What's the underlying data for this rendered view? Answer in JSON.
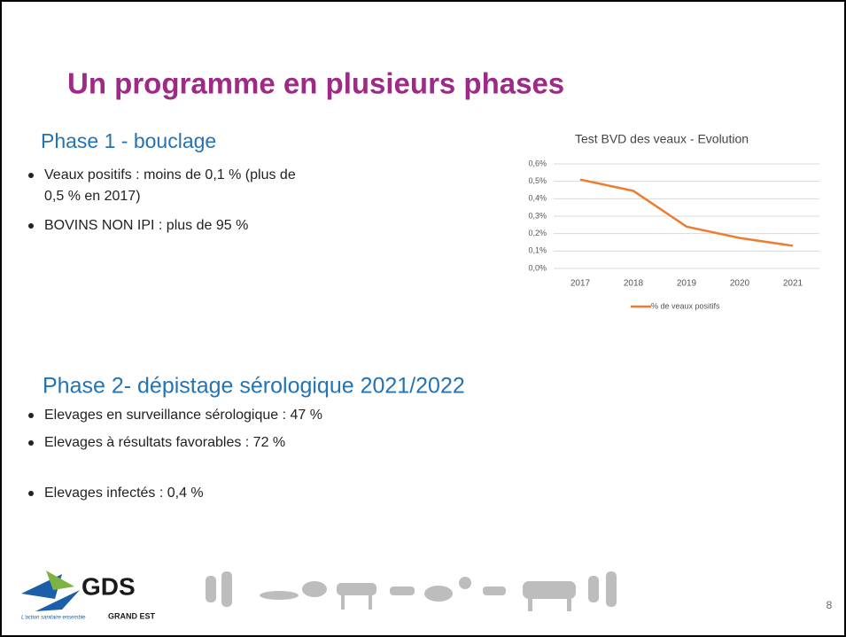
{
  "title": "Un programme en plusieurs phases",
  "phase1": {
    "heading": "Phase 1 - bouclage",
    "bullets": [
      [
        "Veaux positifs : moins de 0,1 % (plus de",
        "0,5 % en 2017)"
      ],
      [
        "BOVINS NON IPI  : plus de 95 %"
      ]
    ]
  },
  "phase2": {
    "heading": "Phase 2- dépistage sérologique 2021/2022",
    "bullets": [
      [
        "Elevages en surveillance sérologique : 47 %"
      ],
      [
        "Elevages à résultats favorables : 72 %"
      ],
      [
        "Elevages infectés : 0,4 %"
      ]
    ]
  },
  "footer": {
    "logo": "GDS",
    "region": "GRAND EST",
    "tagline": "L'action sanitaire ensemble",
    "page": "8"
  },
  "chart_data": {
    "type": "line",
    "title": "Test BVD des veaux - Evolution",
    "categories": [
      "2017",
      "2018",
      "2019",
      "2020",
      "2021"
    ],
    "series": [
      {
        "name": "% de veaux positifs",
        "color": "#ed7d31",
        "values": [
          0.51,
          0.445,
          0.24,
          0.175,
          0.13
        ]
      }
    ],
    "ylim": [
      0,
      0.6
    ],
    "yticks": [
      {
        "value": 0,
        "label": "0,0%"
      },
      {
        "value": 0.1,
        "label": "0,1%"
      },
      {
        "value": 0.2,
        "label": "0,2%"
      },
      {
        "value": 0.3,
        "label": "0,3%"
      },
      {
        "value": 0.4,
        "label": "0,4%"
      },
      {
        "value": 0.5,
        "label": "0,5%"
      },
      {
        "value": 0.6,
        "label": "0,6%"
      }
    ],
    "grid": true
  }
}
